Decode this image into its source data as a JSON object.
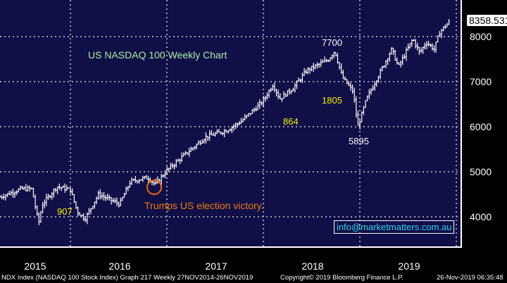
{
  "chart_data": {
    "type": "ohlc-line",
    "title": "US NASDAQ 100 Weekly Chart",
    "xlabel": "",
    "ylabel": "",
    "ylim": [
      3350,
      8750
    ],
    "xlim": [
      2015.27,
      2020.05
    ],
    "y_ticks": [
      4000,
      5000,
      6000,
      7000,
      8000
    ],
    "y_tick_labels": [
      "4000",
      "5000",
      "6000",
      "7000",
      "8000"
    ],
    "x_tick_labels": [
      "2015",
      "2016",
      "2017",
      "2018",
      "2019"
    ],
    "x_year_boundaries": [
      2016,
      2017,
      2018,
      2019,
      2020
    ],
    "grid": true,
    "last_price": "8358.531",
    "series": [
      {
        "name": "NDX Index weekly",
        "x": [
          2015.27,
          2015.49,
          2015.6,
          2015.67,
          2015.71,
          2015.86,
          2016.0,
          2016.07,
          2016.15,
          2016.29,
          2016.51,
          2016.62,
          2016.8,
          2016.88,
          2017.0,
          2017.18,
          2017.4,
          2017.62,
          2017.77,
          2017.99,
          2018.1,
          2018.17,
          2018.31,
          2018.45,
          2018.67,
          2018.74,
          2018.82,
          2018.93,
          2018.98,
          2019.07,
          2019.22,
          2019.33,
          2019.4,
          2019.55,
          2019.62,
          2019.69,
          2019.77,
          2019.83,
          2019.94
        ],
        "values": [
          4440,
          4620,
          4620,
          3850,
          4280,
          4670,
          4600,
          4125,
          3950,
          4500,
          4280,
          4780,
          4875,
          4720,
          5030,
          5370,
          5770,
          5920,
          6120,
          6550,
          6940,
          6620,
          6860,
          7250,
          7480,
          7690,
          7090,
          6780,
          6000,
          6620,
          7250,
          7720,
          7330,
          7950,
          7640,
          7875,
          7720,
          8110,
          8358
        ]
      }
    ],
    "annotations": [
      {
        "text": "7700",
        "color": "#ffffff"
      },
      {
        "text": "1805",
        "color": "#f4f000"
      },
      {
        "text": "864",
        "color": "#f4f000"
      },
      {
        "text": "5895",
        "color": "#ffffff"
      },
      {
        "text": "907",
        "color": "#f4f000"
      },
      {
        "text": "Trumps US election victory.",
        "color": "#f07a10"
      }
    ]
  },
  "contact": "info@marketmatters.com.au",
  "footer": {
    "left": "NDX Index (NASDAQ 100 Stock Index) Graph 217  Weekly 27NOV2014-26NOV2019",
    "center": "Copyright© 2019 Bloomberg Finance L.P.",
    "right": "26-Nov-2019 06:35:48"
  },
  "colors": {
    "background": "#100f47",
    "bars": "#ffffff",
    "grid": "#9a9aa8",
    "title": "#a8f0a0"
  }
}
